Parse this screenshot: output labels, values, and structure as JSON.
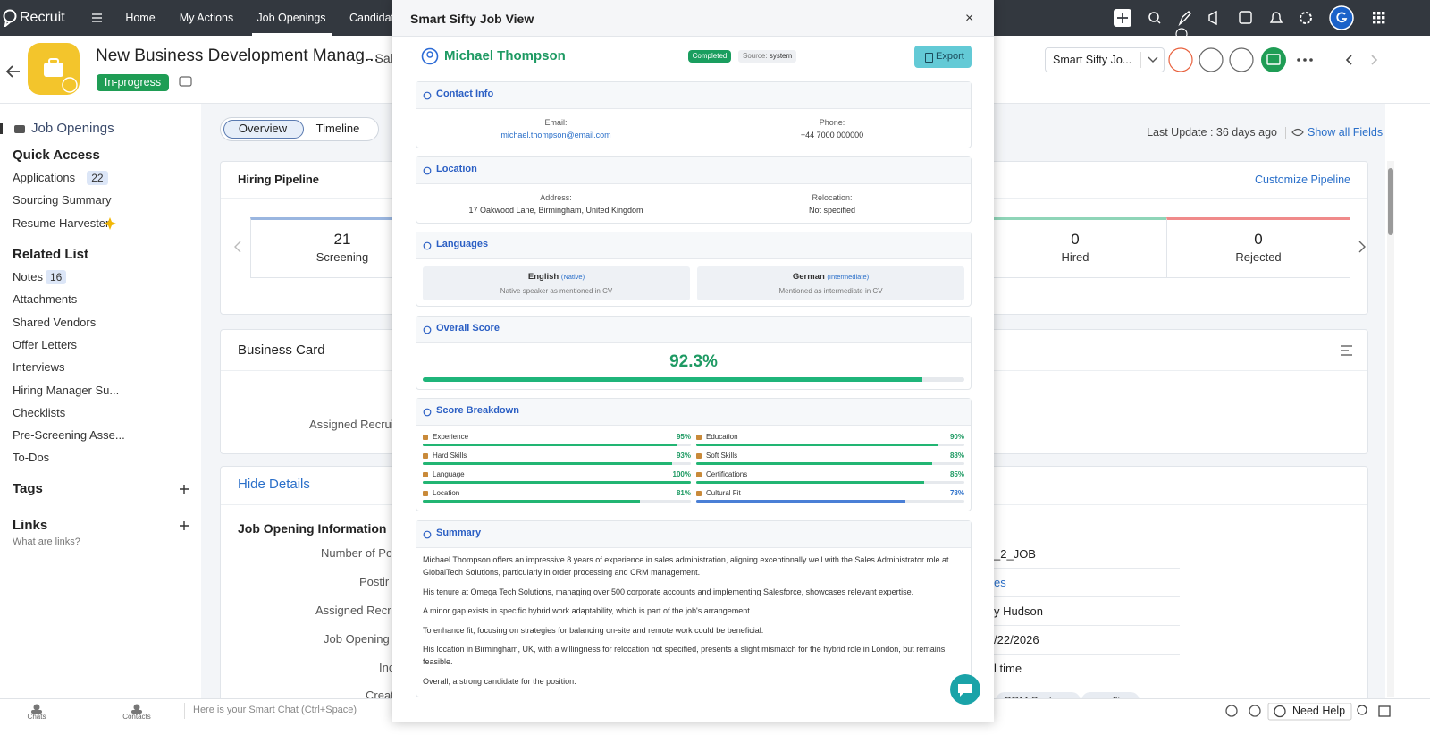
{
  "nav": {
    "brand": "Recruit",
    "items": [
      "Home",
      "My Actions",
      "Job Openings",
      "Candidat"
    ]
  },
  "header": {
    "title": "New Business Development Manag...",
    "suffix": "- Sal",
    "status": "In-progress",
    "view_select": "Smart Sifty Jo..."
  },
  "sidebar": {
    "module": "Job Openings",
    "quick_access": {
      "title": "Quick Access",
      "items": [
        {
          "label": "Applications",
          "count": 22
        },
        {
          "label": "Sourcing Summary"
        },
        {
          "label": "Resume Harvester"
        }
      ]
    },
    "related_list": {
      "title": "Related List",
      "items": [
        {
          "label": "Notes",
          "count": 16
        },
        {
          "label": "Attachments"
        },
        {
          "label": "Shared Vendors"
        },
        {
          "label": "Offer Letters"
        },
        {
          "label": "Interviews"
        },
        {
          "label": "Hiring Manager Su..."
        },
        {
          "label": "Checklists"
        },
        {
          "label": "Pre-Screening Asse..."
        },
        {
          "label": "To-Dos"
        }
      ]
    },
    "tags": "Tags",
    "links": "Links",
    "links_help": "What are links?"
  },
  "main": {
    "tabs": [
      "Overview",
      "Timeline"
    ],
    "last_update": "Last Update : 36 days ago",
    "show_all": "Show all Fields",
    "pipeline": {
      "title": "Hiring Pipeline",
      "customize": "Customize Pipeline",
      "stages": [
        {
          "count": 21,
          "label": "Screening"
        },
        {
          "count": 0,
          "label": "Hired"
        },
        {
          "count": 0,
          "label": "Rejected"
        }
      ]
    },
    "business_card": {
      "title": "Business Card",
      "field": "Assigned Recruit"
    },
    "details": {
      "toggle": "Hide Details",
      "section": "Job Opening Information",
      "fields": [
        "Number of Pc",
        "Postir",
        "Assigned Recr",
        "Job Opening S",
        "Inc",
        "Creat"
      ],
      "values": [
        "_2_JOB",
        "es",
        "y Hudson",
        "/22/2026",
        "l time"
      ],
      "tags": [
        "CRM Systems",
        "upselling"
      ]
    }
  },
  "bottom_bar": {
    "chats": "Chats",
    "contacts": "Contacts",
    "smart_chat": "Here is your Smart Chat (Ctrl+Space)",
    "help": "Need Help"
  },
  "modal": {
    "title": "Smart Sifty Job View",
    "close": "×",
    "candidate": {
      "name": "Michael Thompson",
      "status": "Completed",
      "source_label": "Source:",
      "source": "system",
      "export": "Export"
    },
    "contact": {
      "title": "Contact Info",
      "email_label": "Email:",
      "email": "michael.thompson@email.com",
      "phone_label": "Phone:",
      "phone": "+44 7000 000000"
    },
    "location": {
      "title": "Location",
      "address_label": "Address:",
      "address": "17 Oakwood Lane, Birmingham, United Kingdom",
      "relocation_label": "Relocation:",
      "relocation": "Not specified"
    },
    "languages": {
      "title": "Languages",
      "items": [
        {
          "name": "English",
          "level": "(Native)",
          "note": "Native speaker as mentioned in CV"
        },
        {
          "name": "German",
          "level": "(Intermediate)",
          "note": "Mentioned as intermediate in CV"
        }
      ]
    },
    "overall": {
      "title": "Overall Score",
      "score": {
        "value": 92.3,
        "label": "92.3%"
      },
      "color": "#1fb57a"
    },
    "breakdown": {
      "title": "Score Breakdown",
      "items": [
        {
          "name": "Experience",
          "score": {
            "value": 95,
            "label": "95%"
          },
          "color": "#22b573"
        },
        {
          "name": "Education",
          "score": {
            "value": 90,
            "label": "90%"
          },
          "color": "#22b573"
        },
        {
          "name": "Hard Skills",
          "score": {
            "value": 93,
            "label": "93%"
          },
          "color": "#22b573"
        },
        {
          "name": "Soft Skills",
          "score": {
            "value": 88,
            "label": "88%"
          },
          "color": "#22b573"
        },
        {
          "name": "Language",
          "score": {
            "value": 100,
            "label": "100%"
          },
          "color": "#22b573"
        },
        {
          "name": "Certifications",
          "score": {
            "value": 85,
            "label": "85%"
          },
          "color": "#22b573"
        },
        {
          "name": "Location",
          "score": {
            "value": 81,
            "label": "81%"
          },
          "color": "#22b573"
        },
        {
          "name": "Cultural Fit",
          "score": {
            "value": 78,
            "label": "78%"
          },
          "color": "#4a7fd6"
        }
      ]
    },
    "summary": {
      "title": "Summary",
      "paragraphs": [
        "Michael Thompson offers an impressive 8 years of experience in sales administration, aligning exceptionally well with the Sales Administrator role at GlobalTech Solutions, particularly in order processing and CRM management.",
        "His tenure at Omega Tech Solutions, managing over 500 corporate accounts and implementing Salesforce, showcases relevant expertise.",
        "A minor gap exists in specific hybrid work adaptability, which is part of the job's arrangement.",
        "To enhance fit, focusing on strategies for balancing on-site and remote work could be beneficial.",
        "His location in Birmingham, UK, with a willingness for relocation not specified, presents a slight mismatch for the hybrid role in London, but remains feasible.",
        "Overall, a strong candidate for the position."
      ]
    }
  }
}
